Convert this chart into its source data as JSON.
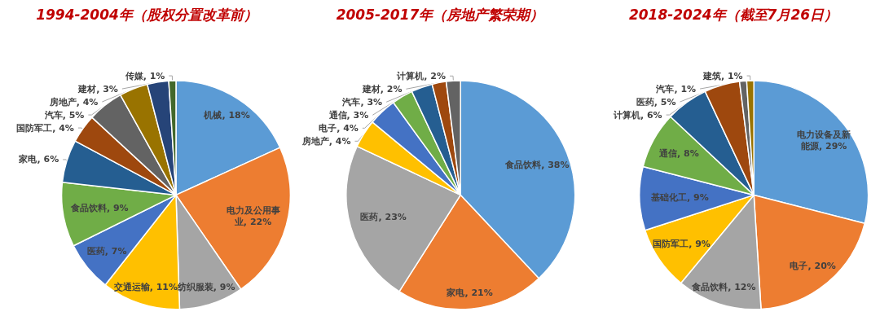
{
  "chart_data": [
    {
      "type": "pie",
      "title": "1994-2004年（股权分置改革前）",
      "categories": [
        "机械",
        "电力及公用事业",
        "纺织服装",
        "交通运输",
        "医药",
        "食品饮料",
        "家电",
        "国防军工",
        "汽车",
        "房地产",
        "建材",
        "传媒"
      ],
      "values": [
        18,
        22,
        9,
        11,
        7,
        9,
        6,
        4,
        5,
        4,
        3,
        1
      ],
      "value_labels": [
        "18%",
        "22%",
        "9%",
        "11%",
        "7%",
        "9%",
        "6%",
        "4%",
        "5%",
        "4%",
        "3%",
        "1%"
      ],
      "colors": [
        "#5b9bd5",
        "#ed7d31",
        "#a5a5a5",
        "#ffc000",
        "#4472c4",
        "#70ad47",
        "#255e91",
        "#9e480e",
        "#636363",
        "#997300",
        "#264478",
        "#43682b"
      ],
      "legend": false
    },
    {
      "type": "pie",
      "title": "2005-2017年（房地产繁荣期）",
      "categories": [
        "食品饮料",
        "家电",
        "医药",
        "房地产",
        "电子",
        "通信",
        "汽车",
        "建材",
        "计算机"
      ],
      "values": [
        38,
        21,
        23,
        4,
        4,
        3,
        3,
        2,
        2
      ],
      "value_labels": [
        "38%",
        "21%",
        "23%",
        "4%",
        "4%",
        "3%",
        "3%",
        "2%",
        "2%"
      ],
      "colors": [
        "#5b9bd5",
        "#ed7d31",
        "#a5a5a5",
        "#ffc000",
        "#4472c4",
        "#70ad47",
        "#255e91",
        "#9e480e",
        "#636363"
      ],
      "legend": false
    },
    {
      "type": "pie",
      "title": "2018-2024年（截至7月26日）",
      "categories": [
        "电力设备及新能源",
        "电子",
        "食品饮料",
        "国防军工",
        "基础化工",
        "通信",
        "计算机",
        "医药",
        "汽车",
        "建筑"
      ],
      "values": [
        29,
        20,
        12,
        9,
        9,
        8,
        6,
        5,
        1,
        1
      ],
      "value_labels": [
        "29%",
        "20%",
        "12%",
        "9%",
        "9%",
        "8%",
        "6%",
        "5%",
        "1%",
        "1%"
      ],
      "colors": [
        "#5b9bd5",
        "#ed7d31",
        "#a5a5a5",
        "#ffc000",
        "#4472c4",
        "#70ad47",
        "#255e91",
        "#9e480e",
        "#636363",
        "#997300"
      ],
      "legend": false
    }
  ]
}
